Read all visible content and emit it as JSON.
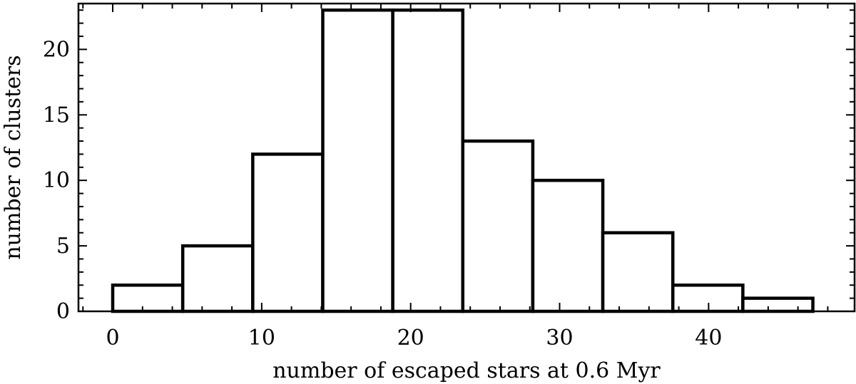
{
  "chart_data": {
    "type": "bar",
    "histogram": true,
    "bin_edges": [
      0,
      4.7,
      9.4,
      14.1,
      18.8,
      23.5,
      28.2,
      32.9,
      37.6,
      42.3,
      47.0
    ],
    "values": [
      2,
      5,
      12,
      23,
      23,
      13,
      10,
      6,
      2,
      1
    ],
    "xlabel": "number of escaped stars at 0.6 Myr",
    "ylabel": "number of clusters",
    "xlim": [
      -2.3,
      49.8
    ],
    "ylim": [
      0,
      23.5
    ],
    "xticks": [
      0,
      10,
      20,
      30,
      40
    ],
    "yticks": [
      0,
      5,
      10,
      15,
      20
    ],
    "x_minor_step": 2,
    "y_minor_step": 1,
    "grid": false,
    "legend": "none"
  }
}
